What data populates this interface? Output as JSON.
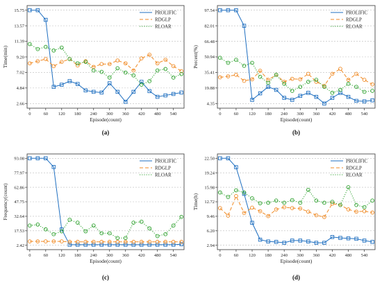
{
  "colors": {
    "PROLIFIC": "#1f6fc0",
    "RDGLP": "#f08a24",
    "RLOAR": "#2ca02c"
  },
  "chart_data": [
    {
      "type": "line",
      "panel_label": "(a)",
      "xlabel": "Episode(count)",
      "ylabel": "Time(min)",
      "x": [
        0,
        30,
        60,
        90,
        120,
        150,
        180,
        210,
        240,
        270,
        300,
        330,
        360,
        390,
        420,
        450,
        480,
        510,
        540,
        570
      ],
      "x_ticks": [
        "0",
        "60",
        "120",
        "180",
        "240",
        "300",
        "360",
        "420",
        "480",
        "540"
      ],
      "y_ticks": [
        "2.66",
        "4.84",
        "7.02",
        "9.20",
        "11.39",
        "13.57",
        "15.75"
      ],
      "ylim": [
        2.66,
        15.75
      ],
      "legend_position": "top-right",
      "series": [
        {
          "name": "PROLIFIC",
          "marker": "square",
          "style": "solid",
          "values": [
            15.75,
            15.75,
            14.4,
            5.0,
            5.3,
            5.8,
            5.4,
            4.5,
            4.3,
            4.2,
            5.5,
            4.3,
            2.9,
            4.3,
            5.7,
            4.4,
            3.6,
            3.8,
            4.0,
            4.2
          ]
        },
        {
          "name": "RDGLP",
          "marker": "circle",
          "style": "dashed",
          "values": [
            8.3,
            8.6,
            8.9,
            7.9,
            8.5,
            8.9,
            8.0,
            8.6,
            7.8,
            8.2,
            8.2,
            8.7,
            8.3,
            7.3,
            9.0,
            9.5,
            8.3,
            8.8,
            7.9,
            7.2
          ]
        },
        {
          "name": "RLOAR",
          "marker": "circle",
          "style": "dotted",
          "values": [
            11.0,
            10.3,
            10.6,
            10.1,
            10.5,
            8.9,
            8.3,
            8.5,
            7.3,
            7.1,
            6.3,
            7.6,
            7.0,
            6.6,
            5.3,
            5.8,
            7.3,
            7.5,
            6.3,
            6.8
          ]
        }
      ]
    },
    {
      "type": "line",
      "panel_label": "(b)",
      "xlabel": "Episode(count)",
      "ylabel": "Percent(%)",
      "x": [
        0,
        30,
        60,
        90,
        120,
        150,
        180,
        210,
        240,
        270,
        300,
        330,
        360,
        390,
        420,
        450,
        480,
        510,
        540,
        570
      ],
      "x_ticks": [
        "0",
        "60",
        "120",
        "180",
        "240",
        "300",
        "360",
        "420",
        "480",
        "540"
      ],
      "y_ticks": [
        "4.35",
        "19.88",
        "35.41",
        "50.94",
        "66.48",
        "82.01",
        "97.54"
      ],
      "ylim": [
        4.35,
        97.54
      ],
      "legend_position": "top-right",
      "series": [
        {
          "name": "PROLIFIC",
          "marker": "square",
          "style": "solid",
          "values": [
            97.54,
            97.54,
            97.54,
            82.0,
            8.0,
            14.5,
            21.0,
            18.0,
            10.0,
            8.0,
            12.0,
            15.0,
            11.0,
            4.35,
            10.0,
            15.0,
            11.0,
            7.0,
            6.5,
            7.5
          ]
        },
        {
          "name": "RDGLP",
          "marker": "circle",
          "style": "dashed",
          "values": [
            30.5,
            31.5,
            33.0,
            27.0,
            28.5,
            37.0,
            28.0,
            33.0,
            26.0,
            29.0,
            28.5,
            34.0,
            26.0,
            22.0,
            34.0,
            39.0,
            28.0,
            34.0,
            28.0,
            23.5
          ]
        },
        {
          "name": "RLOAR",
          "marker": "circle",
          "style": "dotted",
          "values": [
            50.0,
            45.0,
            48.0,
            42.0,
            45.0,
            31.0,
            25.0,
            33.0,
            24.0,
            17.0,
            21.0,
            26.0,
            28.0,
            21.0,
            15.0,
            18.0,
            24.0,
            21.0,
            16.0,
            17.0
          ]
        }
      ]
    },
    {
      "type": "line",
      "panel_label": "(c)",
      "xlabel": "Episode(count)",
      "ylabel": "Frequency(count)",
      "x": [
        0,
        30,
        60,
        90,
        120,
        150,
        180,
        210,
        240,
        270,
        300,
        330,
        360,
        390,
        420,
        450,
        480,
        510,
        540,
        570
      ],
      "x_ticks": [
        "0",
        "60",
        "120",
        "180",
        "240",
        "300",
        "360",
        "420",
        "480",
        "540"
      ],
      "y_ticks": [
        "2.42",
        "17.53",
        "32.64",
        "47.75",
        "62.86",
        "77.97",
        "93.08"
      ],
      "ylim": [
        2.42,
        93.08
      ],
      "legend_position": "top-right",
      "series": [
        {
          "name": "PROLIFIC",
          "marker": "square",
          "style": "solid",
          "values": [
            93.08,
            93.08,
            93.08,
            84.0,
            19.0,
            3.0,
            3.0,
            3.0,
            3.0,
            3.0,
            3.0,
            3.0,
            3.0,
            3.0,
            3.0,
            3.0,
            3.0,
            3.0,
            3.0,
            3.5
          ]
        },
        {
          "name": "RDGLP",
          "marker": "circle",
          "style": "dashed",
          "values": [
            6.5,
            6.5,
            6.5,
            6.5,
            6.5,
            6.0,
            6.0,
            6.0,
            6.0,
            6.0,
            6.0,
            6.0,
            6.0,
            6.0,
            6.0,
            6.0,
            6.0,
            6.0,
            6.0,
            6.0
          ]
        },
        {
          "name": "RLOAR",
          "marker": "circle",
          "style": "dotted",
          "values": [
            23.0,
            24.0,
            19.0,
            14.0,
            17.0,
            29.0,
            26.0,
            17.0,
            23.0,
            15.0,
            15.0,
            10.0,
            10.0,
            26.0,
            27.0,
            20.0,
            12.0,
            14.0,
            23.0,
            32.0
          ]
        }
      ]
    },
    {
      "type": "line",
      "panel_label": "(d)",
      "xlabel": "Episode(count)",
      "ylabel": "Time(h)",
      "x": [
        0,
        30,
        60,
        90,
        120,
        150,
        180,
        210,
        240,
        270,
        300,
        330,
        360,
        390,
        420,
        450,
        480,
        510,
        540,
        570
      ],
      "x_ticks": [
        "0",
        "60",
        "120",
        "180",
        "240",
        "300",
        "360",
        "420",
        "480",
        "540"
      ],
      "y_ticks": [
        "2.94",
        "6.20",
        "9.46",
        "12.72",
        "15.98",
        "19.24",
        "22.50"
      ],
      "ylim": [
        2.94,
        22.5
      ],
      "legend_position": "top-right",
      "series": [
        {
          "name": "PROLIFIC",
          "marker": "square",
          "style": "solid",
          "values": [
            22.5,
            22.5,
            20.5,
            14.5,
            8.0,
            4.2,
            3.8,
            3.7,
            3.5,
            4.0,
            4.0,
            3.8,
            3.5,
            3.5,
            4.8,
            4.6,
            4.5,
            4.4,
            4.0,
            3.7
          ]
        },
        {
          "name": "RDGLP",
          "marker": "circle",
          "style": "dashed",
          "values": [
            11.3,
            9.6,
            14.0,
            10.2,
            11.4,
            10.6,
            9.5,
            11.0,
            11.5,
            11.3,
            11.2,
            10.5,
            9.7,
            9.3,
            12.3,
            12.0,
            11.0,
            10.5,
            10.6,
            10.3
          ]
        },
        {
          "name": "RLOAR",
          "marker": "circle",
          "style": "dotted",
          "values": [
            14.8,
            13.8,
            15.3,
            14.8,
            13.5,
            12.4,
            12.5,
            13.0,
            12.5,
            13.1,
            12.5,
            15.4,
            13.0,
            12.5,
            12.7,
            12.0,
            16.0,
            12.0,
            11.5,
            13.0
          ]
        }
      ]
    }
  ]
}
